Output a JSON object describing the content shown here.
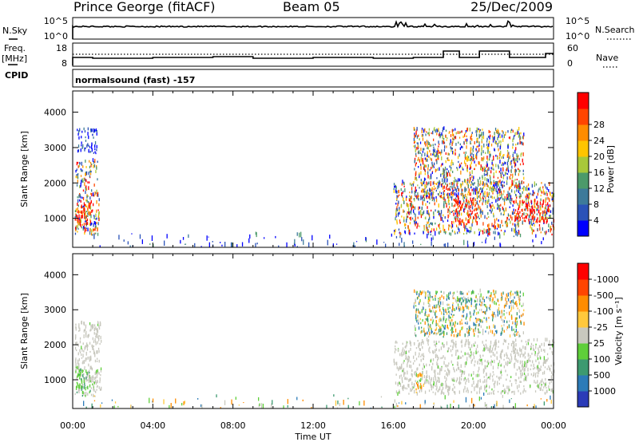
{
  "header": {
    "station": "Prince George (fitACF)",
    "beam": "Beam 05",
    "date": "25/Dec/2009"
  },
  "panels": {
    "nsky": {
      "label": "N.Sky",
      "left_ticks": [
        "10^5",
        "10^0"
      ],
      "right_ticks": [
        "10^5",
        "10^0"
      ],
      "right_label": "N.Search"
    },
    "freq": {
      "label": "Freq.",
      "units": "[MHz]",
      "cpid_label": "CPID",
      "left_ticks": [
        "18",
        "8"
      ],
      "right_ticks": [
        "60",
        "0"
      ],
      "right_label": "Nave"
    },
    "mode": {
      "text": "normalsound (fast) -157"
    }
  },
  "chart_data": [
    {
      "type": "heatmap",
      "title": "",
      "xlabel": "Time UT",
      "ylabel": "Slant Range [km]",
      "x_ticks": [
        "00:00",
        "04:00",
        "08:00",
        "12:00",
        "16:00",
        "20:00",
        "00:00"
      ],
      "x_range_hours": [
        0,
        24
      ],
      "y_ticks": [
        1000,
        2000,
        3000,
        4000
      ],
      "ylim": [
        180,
        4600
      ],
      "colorbar": {
        "label": "Power [dB]",
        "ticks": [
          "4",
          "8",
          "12",
          "16",
          "20",
          "24",
          "28"
        ],
        "colors": [
          "#0000ff",
          "#2a52b8",
          "#3d7a9a",
          "#4c9a6a",
          "#a8c83a",
          "#ffc400",
          "#ff8c00",
          "#ff4500",
          "#ff0000"
        ]
      },
      "echo_regions": [
        {
          "t0": 0.1,
          "t1": 1.3,
          "r0": 500,
          "r1": 2600,
          "level": "mixed"
        },
        {
          "t0": 0.1,
          "t1": 0.9,
          "r0": 750,
          "r1": 1450,
          "level": "high"
        },
        {
          "t0": 0.2,
          "t1": 1.2,
          "r0": 2800,
          "r1": 3500,
          "level": "low"
        },
        {
          "t0": 0.5,
          "t1": 24,
          "r0": 180,
          "r1": 550,
          "level": "noise"
        },
        {
          "t0": 16.0,
          "t1": 24,
          "r0": 500,
          "r1": 2000,
          "level": "mixed"
        },
        {
          "t0": 17.0,
          "t1": 22.5,
          "r0": 1500,
          "r1": 3500,
          "level": "mixed"
        },
        {
          "t0": 19.0,
          "t1": 20.2,
          "r0": 800,
          "r1": 1500,
          "level": "high"
        },
        {
          "t0": 22.0,
          "t1": 23.8,
          "r0": 850,
          "r1": 1500,
          "level": "high"
        }
      ]
    },
    {
      "type": "heatmap",
      "title": "",
      "xlabel": "Time UT",
      "ylabel": "Slant Range [km]",
      "x_ticks": [
        "00:00",
        "04:00",
        "08:00",
        "12:00",
        "16:00",
        "20:00",
        "00:00"
      ],
      "x_range_hours": [
        0,
        24
      ],
      "y_ticks": [
        1000,
        2000,
        3000,
        4000
      ],
      "ylim": [
        180,
        4600
      ],
      "colorbar": {
        "label": "Velocity [m s⁻¹]",
        "ticks": [
          "1000",
          "500",
          "100",
          "25",
          "-25",
          "-100",
          "-500",
          "-1000"
        ],
        "colors": [
          "#2b3bb8",
          "#2c7bb8",
          "#3d9a70",
          "#5fcf3a",
          "#c8c8be",
          "#ffc83c",
          "#ff8c00",
          "#ff4500",
          "#ff0000"
        ]
      },
      "echo_regions": [
        {
          "t0": 0.1,
          "t1": 1.4,
          "r0": 500,
          "r1": 2600,
          "level": "ground"
        },
        {
          "t0": 0.1,
          "t1": 0.9,
          "r0": 500,
          "r1": 1300,
          "level": "pos_small"
        },
        {
          "t0": 0.5,
          "t1": 24,
          "r0": 180,
          "r1": 550,
          "level": "noise"
        },
        {
          "t0": 16.0,
          "t1": 24,
          "r0": 550,
          "r1": 2100,
          "level": "ground"
        },
        {
          "t0": 17.0,
          "t1": 22.5,
          "r0": 2200,
          "r1": 3500,
          "level": "mixed"
        },
        {
          "t0": 17.1,
          "t1": 17.5,
          "r0": 600,
          "r1": 1100,
          "level": "neg"
        }
      ]
    }
  ]
}
